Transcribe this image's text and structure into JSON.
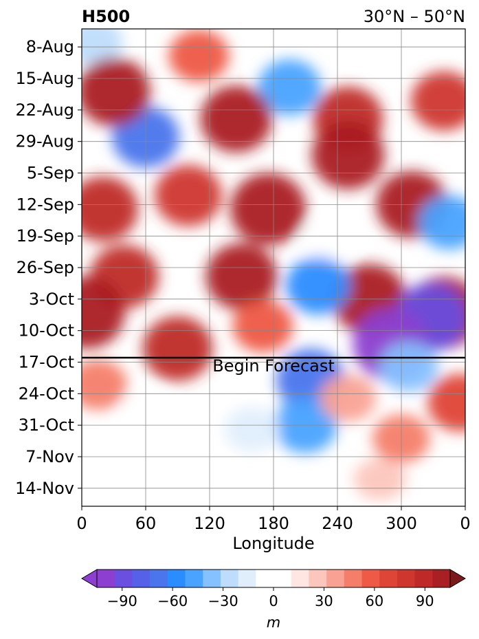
{
  "chart_data": {
    "type": "heatmap",
    "title": "H500",
    "subtitle": "30°N – 50°N",
    "xlabel": "Longitude",
    "ylabel": "",
    "x_ticks": [
      "0",
      "60",
      "120",
      "180",
      "240",
      "300",
      "0"
    ],
    "x_range": [
      0,
      360
    ],
    "y_ticks": [
      "8-Aug",
      "15-Aug",
      "22-Aug",
      "29-Aug",
      "5-Sep",
      "12-Sep",
      "19-Sep",
      "26-Sep",
      "3-Oct",
      "10-Oct",
      "17-Oct",
      "24-Oct",
      "31-Oct",
      "7-Nov",
      "14-Nov"
    ],
    "y_range": [
      "2024-08-04",
      "2024-11-18"
    ],
    "forecast_line_date": "2024-10-16",
    "forecast_label": "Begin Forecast",
    "grid": true,
    "colorbar": {
      "label": "m",
      "ticks": [
        "−90",
        "−60",
        "−30",
        "0",
        "30",
        "60",
        "90"
      ],
      "range": [
        -105,
        105
      ],
      "step": 10,
      "extend": "both",
      "colors": [
        "#8c3fd0",
        "#6a4fe0",
        "#5561e8",
        "#4a75ec",
        "#2a8cff",
        "#4aa3ff",
        "#85c0ff",
        "#bedcfb",
        "#e0eefc",
        "#ffffff",
        "#ffffff",
        "#ffe6e3",
        "#fcc6bd",
        "#f9a293",
        "#f47e6a",
        "#ee5a45",
        "#df4537",
        "#cf362e",
        "#bf2a28",
        "#aa1f24"
      ]
    },
    "anomaly_cells": [
      {
        "lon": 12,
        "date": "2024-08-07",
        "value": -30
      },
      {
        "lon": 60,
        "date": "2024-08-28",
        "value": -70
      },
      {
        "lon": 195,
        "date": "2024-08-17",
        "value": -55
      },
      {
        "lon": 380,
        "date": "2024-08-01",
        "value": 0
      },
      {
        "lon": 30,
        "date": "2024-08-18",
        "value": 90
      },
      {
        "lon": 145,
        "date": "2024-08-24",
        "value": 85
      },
      {
        "lon": 250,
        "date": "2024-08-24",
        "value": 80
      },
      {
        "lon": 340,
        "date": "2024-08-20",
        "value": 65
      },
      {
        "lon": 110,
        "date": "2024-08-10",
        "value": 45
      },
      {
        "lon": 175,
        "date": "2024-09-13",
        "value": 100
      },
      {
        "lon": 100,
        "date": "2024-09-10",
        "value": 70
      },
      {
        "lon": 20,
        "date": "2024-09-13",
        "value": 80
      },
      {
        "lon": 250,
        "date": "2024-09-01",
        "value": 90
      },
      {
        "lon": 310,
        "date": "2024-09-12",
        "value": 85
      },
      {
        "lon": 345,
        "date": "2024-09-16",
        "value": -50
      },
      {
        "lon": 230,
        "date": "2024-09-20",
        "value": -15
      },
      {
        "lon": 40,
        "date": "2024-09-28",
        "value": 75
      },
      {
        "lon": 150,
        "date": "2024-09-28",
        "value": 85
      },
      {
        "lon": 5,
        "date": "2024-10-06",
        "value": 100
      },
      {
        "lon": 270,
        "date": "2024-10-03",
        "value": 95
      },
      {
        "lon": 340,
        "date": "2024-10-06",
        "value": 100
      },
      {
        "lon": 222,
        "date": "2024-09-30",
        "value": -60
      },
      {
        "lon": 328,
        "date": "2024-10-07",
        "value": -90
      },
      {
        "lon": 290,
        "date": "2024-10-13",
        "value": -100
      },
      {
        "lon": 90,
        "date": "2024-10-14",
        "value": 80
      },
      {
        "lon": 170,
        "date": "2024-10-09",
        "value": 45
      },
      {
        "lon": 215,
        "date": "2024-10-21",
        "value": -75
      },
      {
        "lon": 210,
        "date": "2024-10-31",
        "value": -55
      },
      {
        "lon": 307,
        "date": "2024-10-18",
        "value": -40
      },
      {
        "lon": 355,
        "date": "2024-10-26",
        "value": 60
      },
      {
        "lon": 15,
        "date": "2024-10-22",
        "value": 40
      },
      {
        "lon": 250,
        "date": "2024-10-25",
        "value": 30
      },
      {
        "lon": 160,
        "date": "2024-11-01",
        "value": -25
      },
      {
        "lon": 300,
        "date": "2024-11-03",
        "value": 35
      },
      {
        "lon": 60,
        "date": "2024-10-28",
        "value": -15
      },
      {
        "lon": 280,
        "date": "2024-11-12",
        "value": 15
      }
    ]
  }
}
